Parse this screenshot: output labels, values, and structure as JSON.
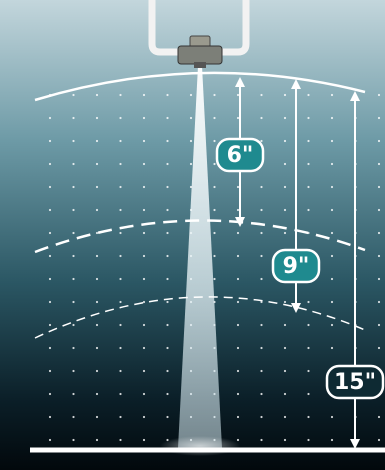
{
  "labels": [
    "6\"",
    "9\"",
    "15\""
  ]
}
